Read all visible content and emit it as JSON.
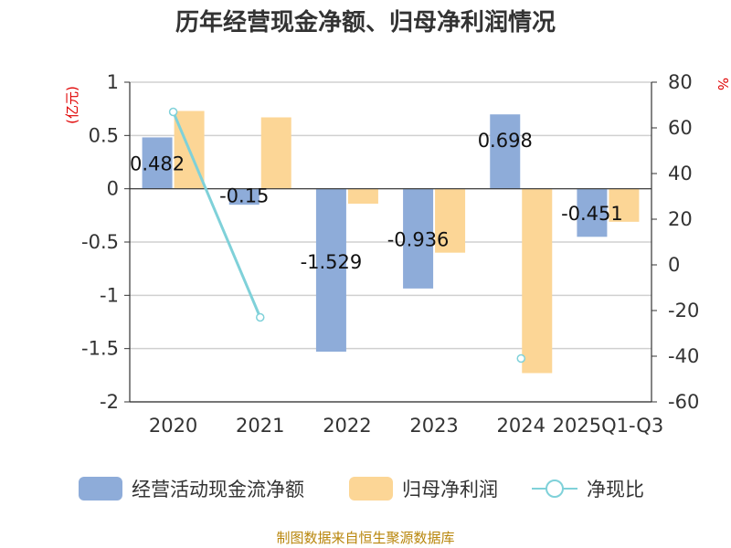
{
  "chart_data": {
    "type": "bar",
    "title": "历年经营现金净额、归母净利润情况",
    "categories": [
      "2020",
      "2021",
      "2022",
      "2023",
      "2024",
      "2025Q1-Q3"
    ],
    "left_axis": {
      "unit": "(亿元)",
      "ylim": [
        -2,
        1
      ],
      "ticks": [
        1,
        0.5,
        0,
        -0.5,
        -1,
        -1.5,
        -2
      ],
      "tick_labels": [
        "1",
        "0.5",
        "0",
        "-0.5",
        "-1",
        "-1.5",
        "-2"
      ]
    },
    "right_axis": {
      "unit": "%",
      "ylim": [
        -60,
        80
      ],
      "ticks": [
        80,
        60,
        40,
        20,
        0,
        -20,
        -40,
        -60
      ],
      "tick_labels": [
        "80",
        "60",
        "40",
        "20",
        "0",
        "-20",
        "-40",
        "-60"
      ]
    },
    "series": [
      {
        "name": "经营活动现金流净额",
        "type": "bar",
        "axis": "left",
        "color": "#8eacd9",
        "values": [
          0.482,
          -0.15,
          -1.529,
          -0.936,
          0.698,
          -0.451
        ],
        "labels": [
          "0.482",
          "-0.15",
          "-1.529",
          "-0.936",
          "0.698",
          "-0.451"
        ]
      },
      {
        "name": "归母净利润",
        "type": "bar",
        "axis": "left",
        "color": "#fcd696",
        "values": [
          0.73,
          0.67,
          -0.14,
          -0.6,
          -1.73,
          -0.31
        ]
      },
      {
        "name": "净现比",
        "type": "line",
        "axis": "right",
        "color": "#7fd1d9",
        "values": [
          67,
          -23,
          null,
          null,
          -41,
          null
        ]
      }
    ],
    "source": "制图数据来自恒生聚源数据库"
  }
}
